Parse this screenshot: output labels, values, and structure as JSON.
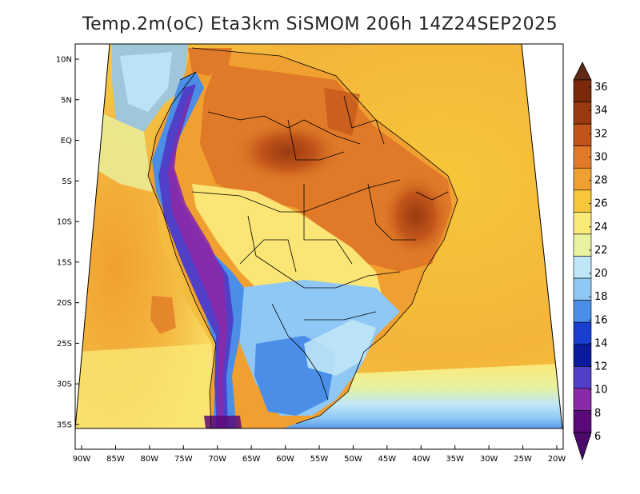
{
  "title": "Temp.2m(oC) Eta3km SiSMOM 206h 14Z24SEP2025",
  "map": {
    "lat_labels": [
      "10N",
      "5N",
      "EQ",
      "5S",
      "10S",
      "15S",
      "20S",
      "25S",
      "30S",
      "35S"
    ],
    "lon_labels": [
      "90W",
      "85W",
      "80W",
      "75W",
      "70W",
      "65W",
      "60W",
      "55W",
      "50W",
      "45W",
      "40W",
      "35W",
      "30W",
      "25W",
      "20W"
    ],
    "lat_values": [
      10,
      5,
      0,
      -5,
      -10,
      -15,
      -20,
      -25,
      -30,
      -35
    ],
    "lon_values": [
      -90,
      -85,
      -80,
      -75,
      -70,
      -65,
      -60,
      -55,
      -50,
      -45,
      -40,
      -35,
      -30,
      -25,
      -20
    ]
  },
  "colorbar": {
    "labels": [
      "36",
      "34",
      "32",
      "30",
      "28",
      "26",
      "24",
      "22",
      "20",
      "18",
      "16",
      "14",
      "12",
      "10",
      "8",
      "6"
    ],
    "colors": [
      "#7a2a0a",
      "#9a3a10",
      "#c1541a",
      "#e07a28",
      "#f0a030",
      "#f7c63a",
      "#fbe978",
      "#e8f2a0",
      "#bfe6f7",
      "#8fc8f4",
      "#4a8ee8",
      "#1a3fd0",
      "#0a1a9c",
      "#5040c8",
      "#8a2aa8",
      "#5a0a78"
    ],
    "top_color": "#5e2a14",
    "bottom_color": "#4a0a6a"
  }
}
